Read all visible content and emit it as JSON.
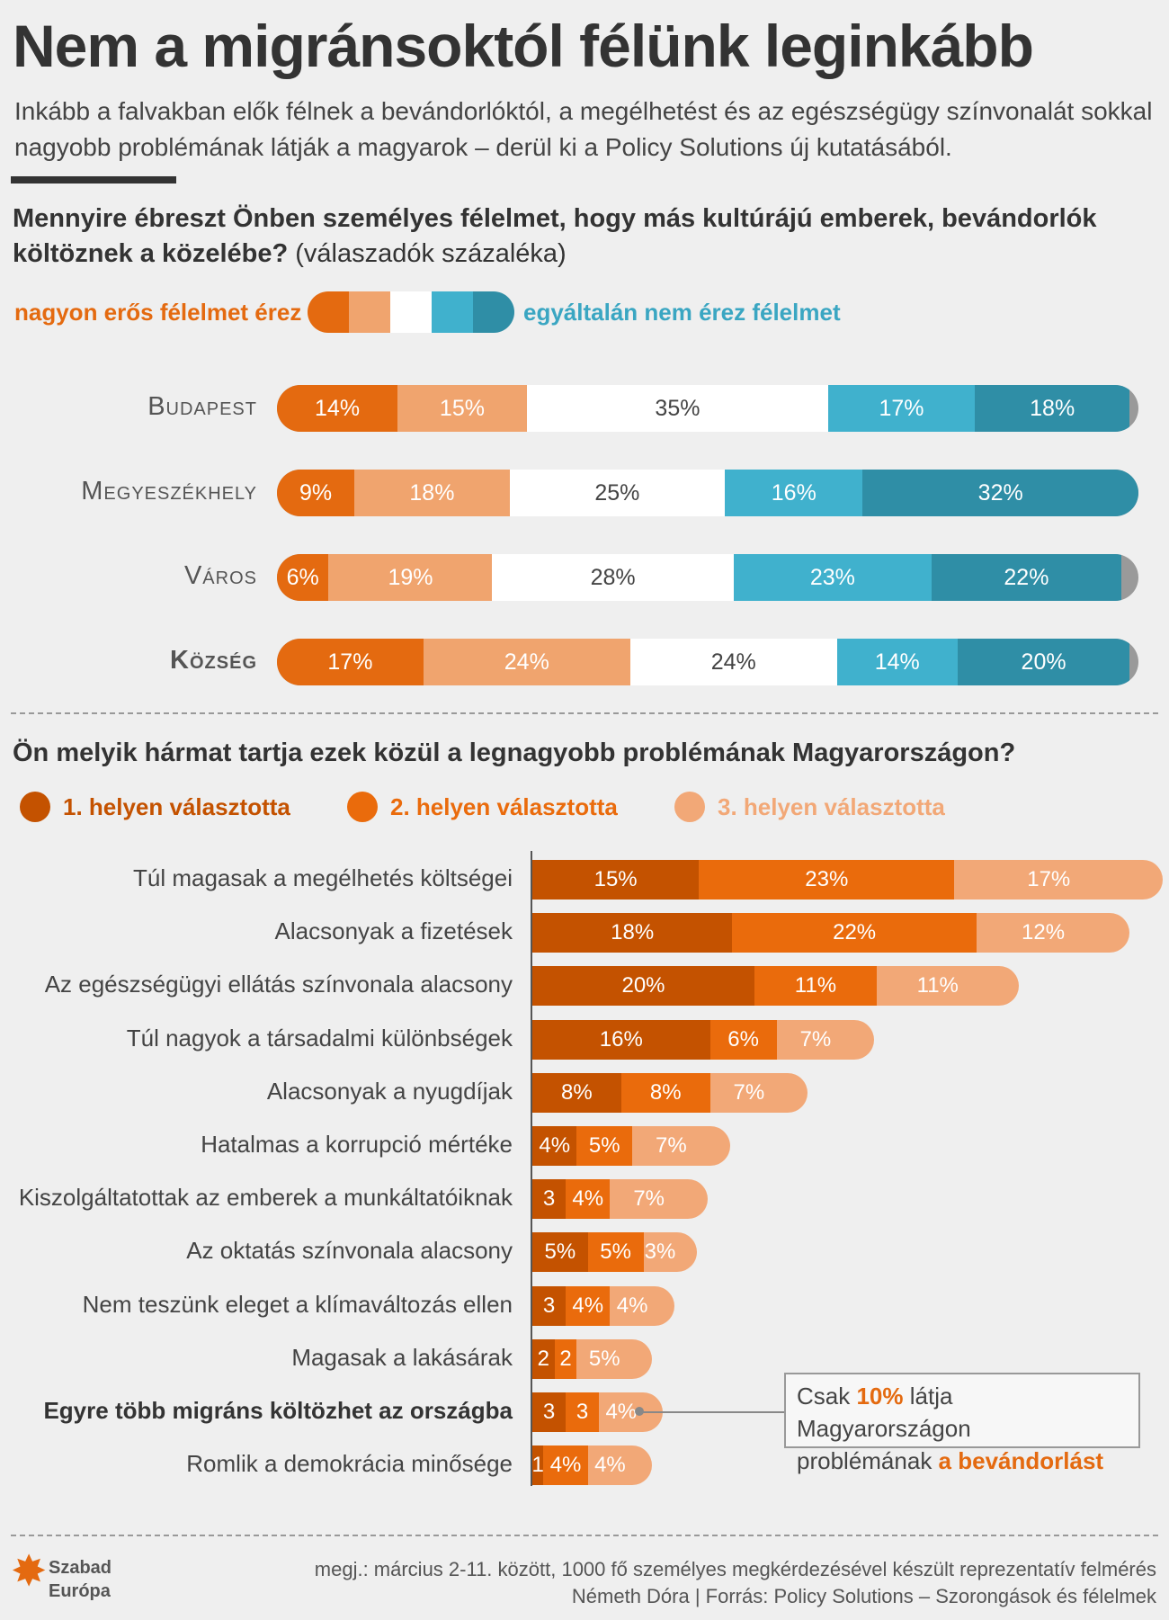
{
  "header": {
    "title": "Nem a migránsoktól félünk leginkább",
    "subtitle": "Inkább a falvakban elők félnek a bevándorlóktól, a megélhetést és az egészségügy színvonalát sokkal nagyobb problémának látják a magyarok – derül ki a Policy Solutions új kutatásából."
  },
  "colors": {
    "strong_fear": "#e46a10",
    "fear": "#f0a46e",
    "neutral": "#ffffff",
    "little_fear": "#40b1cd",
    "no_fear": "#2f8ea6",
    "rank1": "#c45200",
    "rank2": "#ea6b0c",
    "rank3": "#f2a877"
  },
  "q1": {
    "question": "Mennyire ébreszt Önben személyes félelmet, hogy más kultúrájú emberek, bevándorlók költöznek a közelébe?",
    "paren": "(válaszadók százaléka)",
    "legend_left": "nagyon erős félelmet érez",
    "legend_right": "egyáltalán nem érez félelmet"
  },
  "q2": {
    "question": "Ön melyik hármat tartja ezek közül a legnagyobb problémának Magyarországon?",
    "legend": [
      "1. helyen választotta",
      "2. helyen választotta",
      "3. helyen választotta"
    ]
  },
  "callout": {
    "pre": "Csak ",
    "pct": "10%",
    "mid": " látja Magyarországon",
    "pre2": "problémának ",
    "hl": "a bevándorlást"
  },
  "footer": {
    "note": "megj.: március 2-11. között, 1000 fő személyes megkérdezésével készült reprezentatív felmérés",
    "credit": "Németh Dóra | Forrás: Policy Solutions – Szorongások és félelmek",
    "logo_line1": "Szabad",
    "logo_line2": "Európa"
  },
  "chart_data": [
    {
      "type": "bar",
      "stacked": true,
      "orientation": "horizontal",
      "categories": [
        "Budapest",
        "Megyeszékhely",
        "Város",
        "Község"
      ],
      "series": [
        {
          "name": "nagyon erős félelmet érez",
          "values": [
            14,
            9,
            6,
            17
          ]
        },
        {
          "values": [
            15,
            18,
            19,
            24
          ]
        },
        {
          "values": [
            35,
            25,
            28,
            24
          ]
        },
        {
          "values": [
            17,
            16,
            23,
            14
          ]
        },
        {
          "name": "egyáltalán nem érez félelmet",
          "values": [
            18,
            32,
            22,
            20
          ]
        }
      ],
      "labels": [
        [
          "14%",
          "15%",
          "35%",
          "17%",
          "18%"
        ],
        [
          "9%",
          "18%",
          "25%",
          "16%",
          "32%"
        ],
        [
          "6%",
          "19%",
          "28%",
          "23%",
          "22%"
        ],
        [
          "17%",
          "24%",
          "24%",
          "14%",
          "20%"
        ]
      ]
    },
    {
      "type": "bar",
      "stacked": true,
      "orientation": "horizontal",
      "categories": [
        "Túl magasak a megélhetés költségei",
        "Alacsonyak a fizetések",
        "Az egészségügyi ellátás színvonala alacsony",
        "Túl nagyok a társadalmi különbségek",
        "Alacsonyak a nyugdíjak",
        "Hatalmas a korrupció mértéke",
        "Kiszolgáltatottak az emberek a munkáltatóiknak",
        "Az oktatás színvonala alacsony",
        "Nem teszünk eleget a klímaváltozás ellen",
        "Magasak a lakásárak",
        "Egyre több migráns költözhet az országba",
        "Romlik a demokrácia minősége"
      ],
      "series": [
        {
          "name": "1. helyen választotta",
          "values": [
            15,
            18,
            20,
            16,
            8,
            4,
            3,
            5,
            3,
            2,
            3,
            1
          ]
        },
        {
          "name": "2. helyen választotta",
          "values": [
            23,
            22,
            11,
            6,
            8,
            5,
            4,
            5,
            4,
            2,
            3,
            4
          ]
        },
        {
          "name": "3. helyen választotta",
          "values": [
            17,
            12,
            11,
            7,
            7,
            7,
            7,
            3,
            4,
            5,
            4,
            4
          ]
        }
      ],
      "labels": [
        [
          "15%",
          "23%",
          "17%"
        ],
        [
          "18%",
          "22%",
          "12%"
        ],
        [
          "20%",
          "11%",
          "11%"
        ],
        [
          "16%",
          "6%",
          "7%"
        ],
        [
          "8%",
          "8%",
          "7%"
        ],
        [
          "4%",
          "5%",
          "7%"
        ],
        [
          "3",
          "4%",
          "7%"
        ],
        [
          "5%",
          "5%",
          "3%"
        ],
        [
          "3",
          "4%",
          "4%"
        ],
        [
          "2",
          "2",
          "5%"
        ],
        [
          "3",
          "3",
          "4%"
        ],
        [
          "1",
          "4%",
          "4%"
        ]
      ]
    }
  ]
}
